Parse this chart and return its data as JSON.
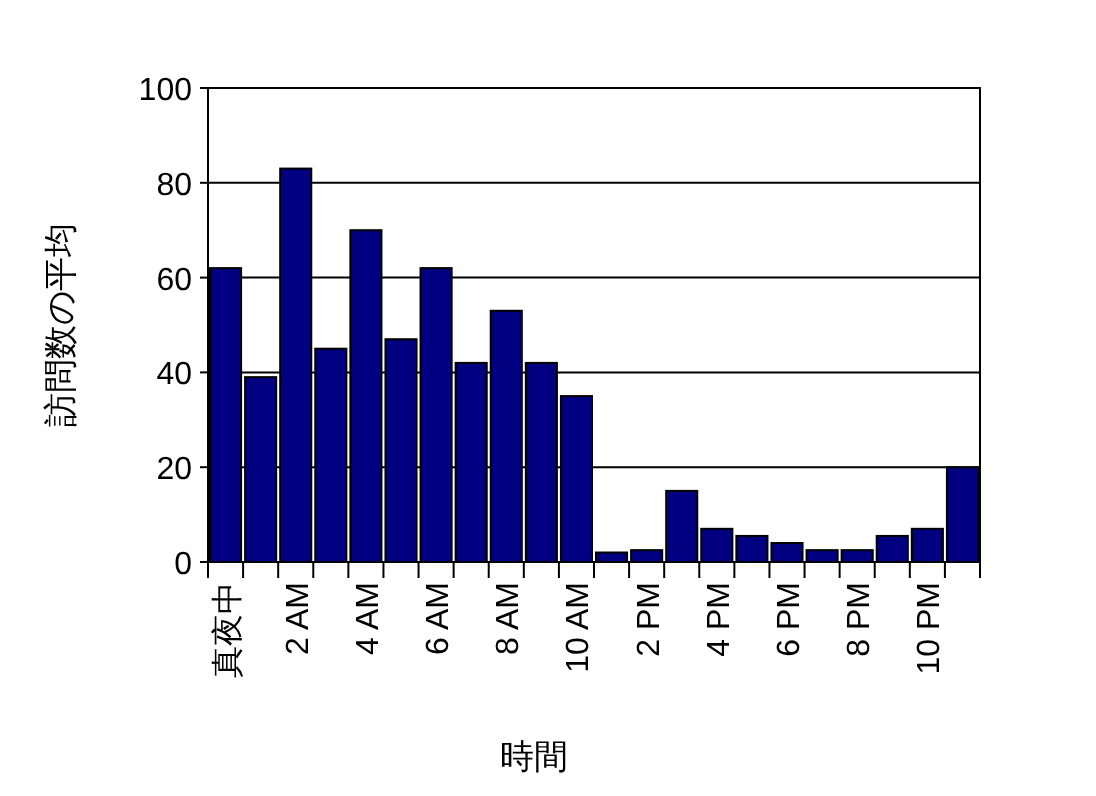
{
  "chart_data": {
    "type": "bar",
    "xlabel": "時間",
    "ylabel": "訪問数の平均",
    "categories": [
      "真夜中",
      null,
      "2 AM",
      null,
      "4 AM",
      null,
      "6 AM",
      null,
      "8 AM",
      null,
      "10 AM",
      null,
      "2 PM",
      null,
      "4 PM",
      null,
      "6 PM",
      null,
      "8 PM",
      null,
      "10 PM",
      null
    ],
    "values": [
      62,
      39,
      83,
      45,
      70,
      47,
      62,
      42,
      53,
      42,
      35,
      2,
      2.5,
      15,
      7,
      5.5,
      4,
      2.5,
      2.5,
      5.5,
      7,
      20
    ],
    "color": "#000080",
    "ylim": [
      0,
      100
    ],
    "yticks": [
      0,
      20,
      40,
      60,
      80,
      100
    ],
    "grid": "y"
  }
}
